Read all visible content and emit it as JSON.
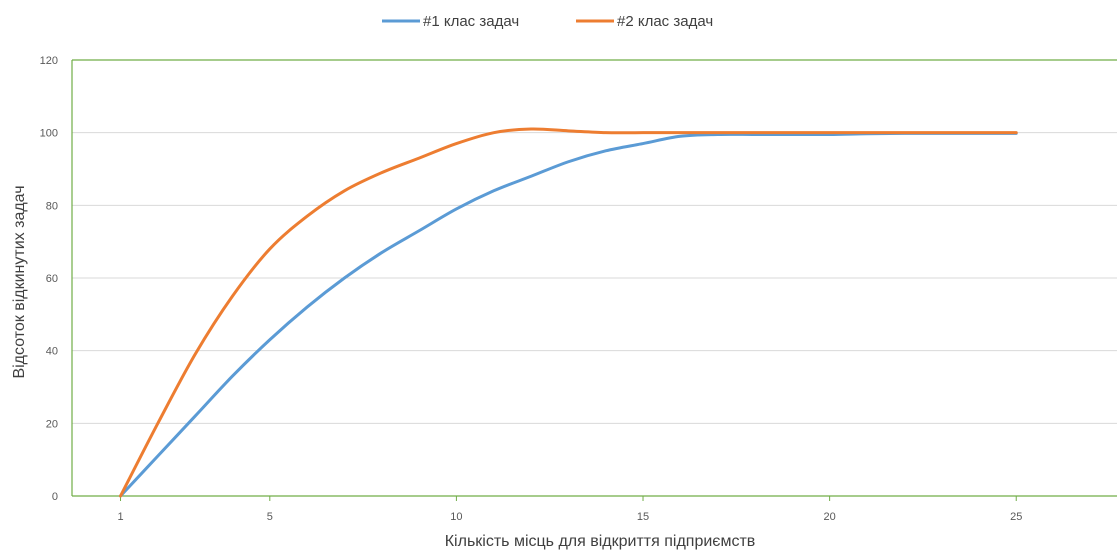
{
  "chart_data": {
    "type": "line",
    "title": "",
    "xlabel": "Кількість місць для відкриття підприємств",
    "ylabel": "Відсоток відкинутих задач",
    "x": [
      1,
      2,
      3,
      4,
      5,
      6,
      7,
      8,
      9,
      10,
      11,
      12,
      13,
      14,
      15,
      16,
      17,
      18,
      19,
      20,
      21,
      22,
      23,
      24,
      25
    ],
    "x_ticks": [
      "1",
      "5",
      "10",
      "15",
      "20",
      "25"
    ],
    "x_tick_values": [
      1,
      5,
      10,
      15,
      20,
      25
    ],
    "xlim": [
      -0.3,
      27.7
    ],
    "ylim": [
      0,
      120
    ],
    "y_ticks": [
      0,
      20,
      40,
      60,
      80,
      100,
      120
    ],
    "grid": true,
    "legend_position": "top-center",
    "series": [
      {
        "name": "#1 клас задач",
        "color": "#5b9bd5",
        "values": [
          0,
          11,
          22,
          33,
          43,
          52,
          60,
          67,
          73,
          79,
          84,
          88,
          92,
          95,
          97,
          99,
          99.5,
          99.5,
          99.5,
          99.5,
          99.7,
          99.8,
          99.8,
          99.8,
          99.8
        ]
      },
      {
        "name": "#2 клас задач",
        "color": "#ed7d31",
        "values": [
          0,
          20,
          39,
          55,
          68,
          77,
          84,
          89,
          93,
          97,
          100,
          101,
          100.5,
          100,
          100,
          100,
          100,
          100,
          100,
          100,
          100,
          100,
          100,
          100,
          100
        ]
      }
    ]
  }
}
